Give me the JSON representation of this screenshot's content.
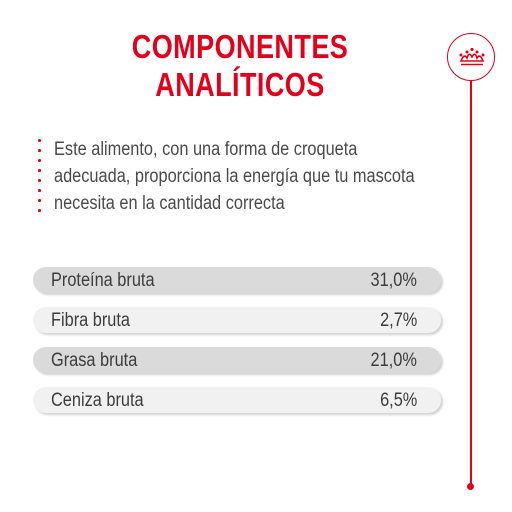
{
  "title": {
    "line1": "COMPONENTES",
    "line2": "ANALÍTICOS"
  },
  "logo_icon": "crown-icon",
  "description": {
    "line1": "Este alimento, con una forma de croqueta",
    "line2": "adecuada, proporciona la energía que tu mascota",
    "line3": "necesita en la cantidad correcta"
  },
  "components": [
    {
      "name": "Proteína bruta",
      "value": "31,0%"
    },
    {
      "name": "Fibra bruta",
      "value": "2,7%"
    },
    {
      "name": "Grasa bruta",
      "value": "21,0%"
    },
    {
      "name": "Ceniza bruta",
      "value": "6,5%"
    }
  ],
  "colors": {
    "accent": "#e2001a",
    "row_dark": "#dadada",
    "row_light": "#f1f1f1",
    "text": "#4a4a4a"
  }
}
